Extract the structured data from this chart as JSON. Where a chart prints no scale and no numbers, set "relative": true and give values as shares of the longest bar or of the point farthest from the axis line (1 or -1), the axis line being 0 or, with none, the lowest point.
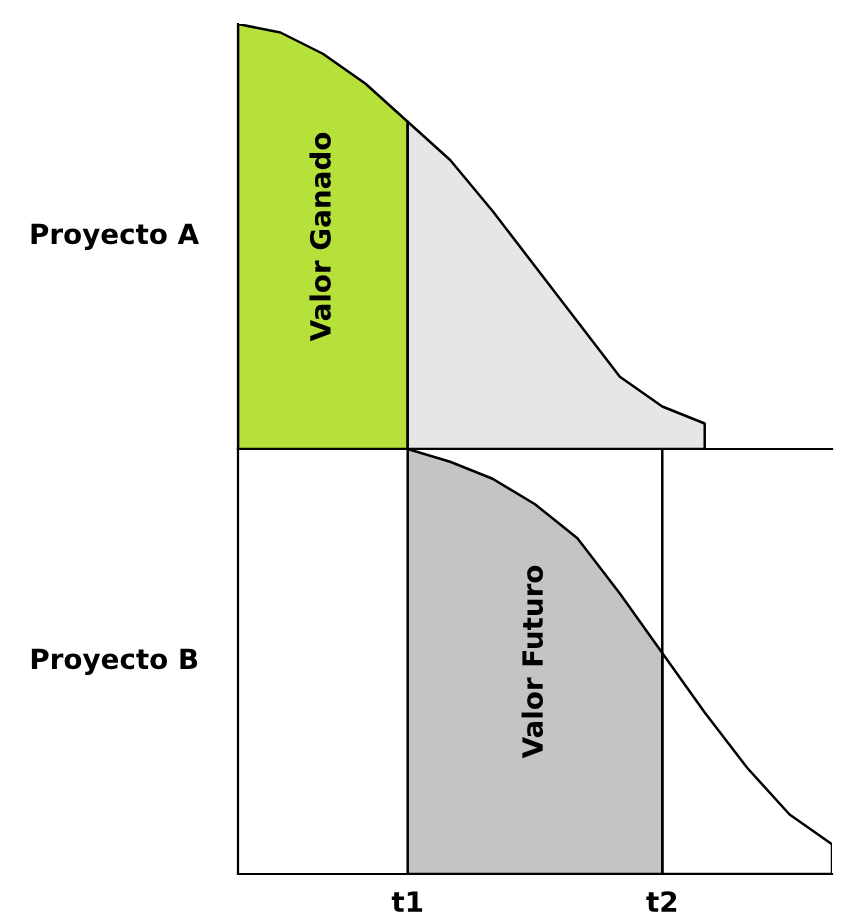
{
  "chart_data": [
    {
      "type": "area",
      "relative": true,
      "ylabel": "Proyecto A",
      "categories": [
        null,
        null,
        null,
        null,
        null,
        null,
        null,
        null,
        null,
        null,
        null,
        null,
        null,
        null,
        null
      ],
      "tick_labels": false,
      "grid": false,
      "legend": false,
      "series": [
        {
          "name": "Valor Ganado",
          "color": "#b5e13a",
          "values": [
            1.0,
            0.98,
            0.93,
            0.86,
            0.77,
            null,
            null,
            null,
            null,
            null,
            null,
            null,
            null,
            null,
            null
          ]
        },
        {
          "color": "#e6e6e6",
          "values": [
            null,
            null,
            null,
            null,
            0.77,
            0.68,
            0.56,
            0.43,
            0.3,
            0.17,
            0.1,
            0.06,
            null,
            null,
            null
          ]
        }
      ]
    },
    {
      "type": "area",
      "relative": true,
      "ylabel": "Proyecto B",
      "categories": [
        null,
        null,
        null,
        null,
        "t1",
        null,
        null,
        null,
        null,
        null,
        "t2",
        null,
        null,
        null,
        null
      ],
      "tick_labels": "x",
      "grid": false,
      "legend": false,
      "ref_lines": [
        {
          "axis": "x",
          "value": "t2",
          "label": null
        }
      ],
      "series": [
        {
          "name": "Valor Futuro",
          "color": "#c4c4c4",
          "values": [
            null,
            null,
            null,
            null,
            1.0,
            0.97,
            0.93,
            0.87,
            0.79,
            0.66,
            0.52,
            null,
            null,
            null,
            null
          ]
        },
        {
          "color": "#ffffff",
          "values": [
            null,
            null,
            null,
            null,
            null,
            null,
            null,
            null,
            null,
            null,
            0.52,
            0.38,
            0.25,
            0.14,
            0.07
          ]
        }
      ]
    }
  ]
}
